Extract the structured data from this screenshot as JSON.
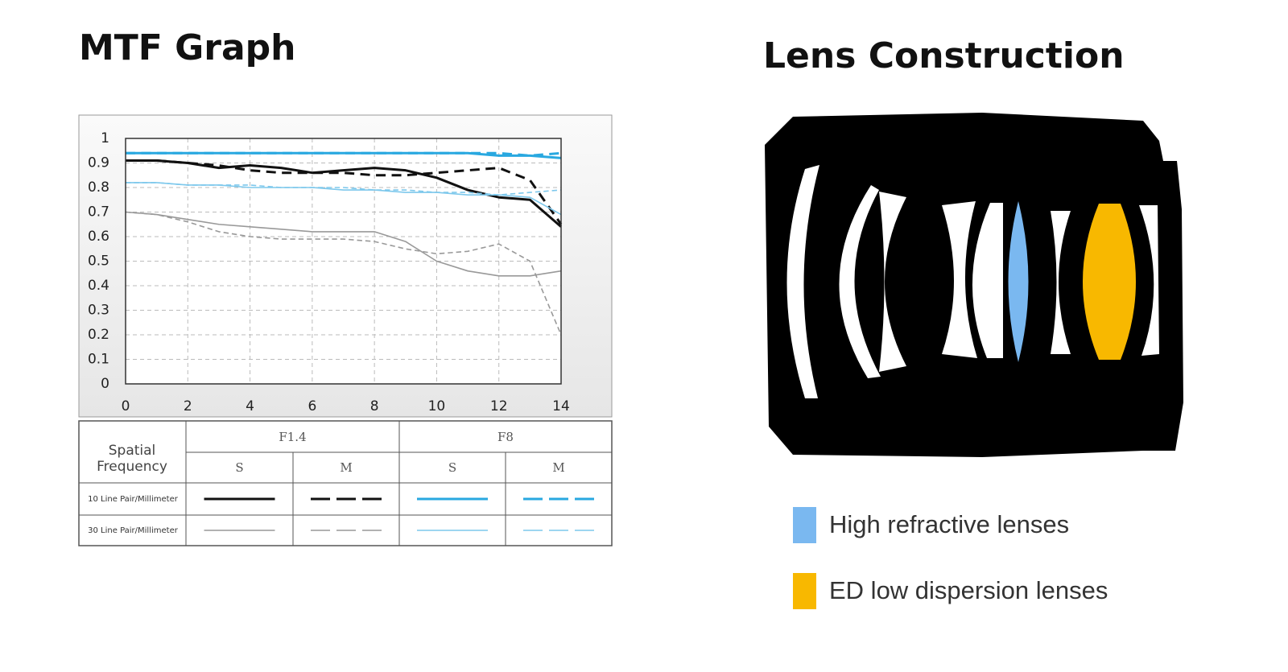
{
  "chart_data": {
    "type": "line",
    "title": "MTF Graph",
    "x": [
      0,
      1,
      2,
      3,
      4,
      5,
      6,
      7,
      8,
      9,
      10,
      11,
      12,
      13,
      14
    ],
    "xlim": [
      0,
      14
    ],
    "xticks": [
      0,
      2,
      4,
      6,
      8,
      10,
      12,
      14
    ],
    "ylim": [
      0,
      1
    ],
    "yticks": [
      0,
      0.1,
      0.2,
      0.3,
      0.4,
      0.5,
      0.6,
      0.7,
      0.8,
      0.9,
      1
    ],
    "grid": true,
    "series": [
      {
        "color": "#111111",
        "dash": false,
        "width": 3,
        "values": [
          0.91,
          0.91,
          0.9,
          0.88,
          0.89,
          0.88,
          0.86,
          0.87,
          0.88,
          0.87,
          0.84,
          0.79,
          0.76,
          0.75,
          0.64
        ]
      },
      {
        "color": "#111111",
        "dash": true,
        "width": 3,
        "values": [
          0.91,
          0.91,
          0.9,
          0.89,
          0.87,
          0.86,
          0.86,
          0.86,
          0.85,
          0.85,
          0.86,
          0.87,
          0.88,
          0.83,
          0.65
        ]
      },
      {
        "color": "#29a8e0",
        "dash": false,
        "width": 3,
        "values": [
          0.94,
          0.94,
          0.94,
          0.94,
          0.94,
          0.94,
          0.94,
          0.94,
          0.94,
          0.94,
          0.94,
          0.94,
          0.93,
          0.93,
          0.92
        ]
      },
      {
        "color": "#29a8e0",
        "dash": true,
        "width": 3,
        "values": [
          0.94,
          0.94,
          0.94,
          0.94,
          0.94,
          0.94,
          0.94,
          0.94,
          0.94,
          0.94,
          0.94,
          0.94,
          0.94,
          0.93,
          0.94
        ]
      },
      {
        "color": "#999999",
        "dash": false,
        "width": 1.6,
        "values": [
          0.7,
          0.69,
          0.67,
          0.65,
          0.64,
          0.63,
          0.62,
          0.62,
          0.62,
          0.58,
          0.5,
          0.46,
          0.44,
          0.44,
          0.46
        ]
      },
      {
        "color": "#999999",
        "dash": true,
        "width": 1.6,
        "values": [
          0.7,
          0.69,
          0.66,
          0.62,
          0.6,
          0.59,
          0.59,
          0.59,
          0.58,
          0.55,
          0.53,
          0.54,
          0.57,
          0.5,
          0.2
        ]
      },
      {
        "color": "#7dc8ec",
        "dash": false,
        "width": 1.6,
        "values": [
          0.82,
          0.82,
          0.81,
          0.81,
          0.8,
          0.8,
          0.8,
          0.79,
          0.79,
          0.78,
          0.78,
          0.77,
          0.77,
          0.76,
          0.69
        ]
      },
      {
        "color": "#7dc8ec",
        "dash": true,
        "width": 1.6,
        "values": [
          0.82,
          0.82,
          0.81,
          0.81,
          0.81,
          0.8,
          0.8,
          0.8,
          0.79,
          0.79,
          0.78,
          0.78,
          0.77,
          0.78,
          0.79
        ]
      }
    ]
  },
  "table": {
    "corner": "Spatial Frequency",
    "groups": [
      "F1.4",
      "F8"
    ],
    "subheaders": [
      "S",
      "M",
      "S",
      "M"
    ],
    "rows": [
      "10 Line Pair/Millimeter",
      "30 Line Pair/Millimeter"
    ]
  },
  "lens": {
    "title": "Lens Construction",
    "legend": [
      {
        "label": "High refractive lenses",
        "color": "#7ab8f0"
      },
      {
        "label": "ED low dispersion lenses",
        "color": "#f8b800"
      }
    ]
  }
}
